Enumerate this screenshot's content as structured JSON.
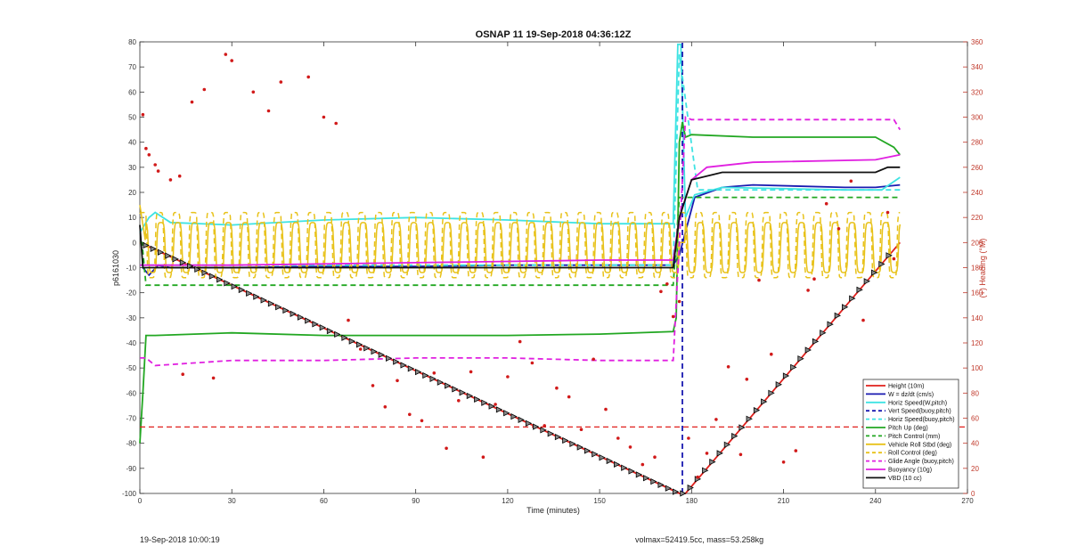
{
  "chart_data": {
    "type": "line",
    "title": "OSNAP 11 19-Sep-2018 04:36:12Z",
    "xlabel": "Time (minutes)",
    "ylabel": "p6161030",
    "y2label": "(+) Heading (°M)",
    "xlim": [
      0,
      270
    ],
    "ylim": [
      -100,
      80
    ],
    "y2lim": [
      0,
      360
    ],
    "xticks": [
      0,
      30,
      60,
      90,
      120,
      150,
      180,
      210,
      240,
      270
    ],
    "yticks": [
      -100,
      -90,
      -80,
      -70,
      -60,
      -50,
      -40,
      -30,
      -20,
      -10,
      0,
      10,
      20,
      30,
      40,
      50,
      60,
      70,
      80
    ],
    "y2ticks": [
      0,
      20,
      40,
      60,
      80,
      100,
      120,
      140,
      160,
      180,
      200,
      220,
      240,
      260,
      280,
      300,
      320,
      340,
      360
    ],
    "grid": false,
    "legend_position": "bottom-right",
    "series": [
      {
        "name": "Height (10m)",
        "color": "#e0201c",
        "style": "solid",
        "x": [
          0,
          176,
          178,
          248
        ],
        "y": [
          0,
          -100,
          -100,
          0
        ]
      },
      {
        "name": "W = dz/dt (cm/s)",
        "color": "#1a1ab0",
        "style": "solid",
        "x": [
          1,
          3,
          6,
          10,
          30,
          60,
          90,
          120,
          150,
          174,
          176,
          181,
          190,
          200,
          230,
          240,
          248
        ],
        "y": [
          -10,
          -13,
          -9,
          -10,
          -10,
          -9.5,
          -9.5,
          -9,
          -9,
          -9,
          -5,
          18,
          22,
          23,
          22,
          22,
          23
        ]
      },
      {
        "name": "Horiz Speed(W,pitch)",
        "color": "#3ee3e3",
        "style": "solid",
        "x": [
          0,
          3,
          5,
          10,
          30,
          60,
          90,
          120,
          150,
          174,
          175.5,
          176.5,
          178,
          181,
          190,
          230,
          242,
          248
        ],
        "y": [
          4,
          10,
          12,
          8,
          7,
          9,
          10,
          9,
          7.5,
          7.5,
          79,
          79,
          10,
          19,
          22,
          21,
          21,
          26
        ]
      },
      {
        "name": "Vert Speed(buoy,pitch)",
        "color": "#1a1ab0",
        "style": "dashed",
        "x": [
          177,
          177
        ],
        "y": [
          -100,
          80
        ]
      },
      {
        "name": "Horiz Speed(buoy,pitch)",
        "color": "#3ee3e3",
        "style": "dashed",
        "x": [
          0,
          174,
          176,
          182,
          248
        ],
        "y": [
          -9,
          -9,
          75,
          21,
          21
        ]
      },
      {
        "name": "Pitch Up (deg)",
        "color": "#22a722",
        "style": "solid",
        "x": [
          0,
          1,
          2,
          5,
          30,
          60,
          90,
          120,
          150,
          174,
          175,
          176,
          177,
          178,
          180,
          200,
          240,
          246,
          248
        ],
        "y": [
          -80,
          -60,
          -37,
          -37,
          -36,
          -37,
          -37,
          -37,
          -36.5,
          -35.5,
          -30,
          40,
          48,
          42,
          43,
          42,
          42,
          38,
          35
        ]
      },
      {
        "name": "Pitch Control (mm)",
        "color": "#22a722",
        "style": "dashed",
        "x": [
          0,
          0.7,
          2,
          174,
          176,
          180,
          248
        ],
        "y": [
          0,
          0,
          -17,
          -17,
          18,
          18,
          18
        ]
      },
      {
        "name": "Vehicle Roll Stbd (deg)",
        "color": "#e8c21a",
        "style": "solid",
        "x": [
          0,
          174,
          178,
          248
        ],
        "y": [
          0,
          0,
          -5,
          -5
        ]
      },
      {
        "name": "Roll Control (deg)",
        "color": "#e8c21a",
        "style": "dashed",
        "x": [
          0,
          174,
          178,
          248
        ],
        "y": [
          0,
          0,
          -5,
          -5
        ]
      },
      {
        "name": "Glide Angle (buoy,pitch)",
        "color": "#e020e0",
        "style": "dashed",
        "x": [
          0,
          2,
          5,
          30,
          60,
          90,
          120,
          150,
          174,
          176,
          178,
          180,
          190,
          246,
          248
        ],
        "y": [
          -46,
          -46,
          -49,
          -47,
          -47,
          -46,
          -46,
          -47,
          -47,
          0,
          50,
          49,
          49,
          49,
          45
        ]
      },
      {
        "name": "Buoyancy (10g)",
        "color": "#e020e0",
        "style": "solid",
        "x": [
          0,
          2,
          30,
          60,
          90,
          120,
          150,
          174,
          176,
          180,
          185,
          200,
          240,
          248
        ],
        "y": [
          -9,
          -9,
          -9,
          -8.5,
          -8,
          -7.5,
          -7,
          -7,
          10,
          25,
          30,
          32,
          33,
          35
        ]
      },
      {
        "name": "VBD (10 cc)",
        "color": "#111111",
        "style": "solid",
        "x": [
          0,
          1,
          2,
          174,
          176,
          180,
          190,
          240,
          244,
          248
        ],
        "y": [
          7,
          -10,
          -10,
          -10,
          10,
          25,
          28,
          28,
          30,
          30
        ]
      }
    ],
    "heading_points": {
      "name": "Heading",
      "color": "#d11a1a",
      "axis": "right",
      "points": [
        [
          1,
          302
        ],
        [
          2,
          275
        ],
        [
          3,
          270
        ],
        [
          5,
          262
        ],
        [
          6,
          257
        ],
        [
          10,
          250
        ],
        [
          13,
          253
        ],
        [
          14,
          95
        ],
        [
          17,
          312
        ],
        [
          21,
          322
        ],
        [
          24,
          92
        ],
        [
          28,
          350
        ],
        [
          30,
          345
        ],
        [
          37,
          320
        ],
        [
          42,
          305
        ],
        [
          46,
          328
        ],
        [
          55,
          332
        ],
        [
          60,
          300
        ],
        [
          64,
          295
        ],
        [
          68,
          138
        ],
        [
          72,
          115
        ],
        [
          76,
          86
        ],
        [
          80,
          69
        ],
        [
          84,
          90
        ],
        [
          88,
          63
        ],
        [
          92,
          58
        ],
        [
          96,
          96
        ],
        [
          100,
          36
        ],
        [
          104,
          74
        ],
        [
          108,
          97
        ],
        [
          112,
          29
        ],
        [
          116,
          71
        ],
        [
          120,
          93
        ],
        [
          124,
          121
        ],
        [
          128,
          104
        ],
        [
          132,
          54
        ],
        [
          136,
          84
        ],
        [
          140,
          77
        ],
        [
          144,
          51
        ],
        [
          148,
          107
        ],
        [
          152,
          67
        ],
        [
          156,
          44
        ],
        [
          160,
          37
        ],
        [
          164,
          23
        ],
        [
          168,
          29
        ],
        [
          170,
          161
        ],
        [
          172,
          167
        ],
        [
          174,
          141
        ],
        [
          176,
          153
        ],
        [
          179,
          44
        ],
        [
          182,
          13
        ],
        [
          185,
          32
        ],
        [
          188,
          59
        ],
        [
          192,
          101
        ],
        [
          196,
          31
        ],
        [
          198,
          91
        ],
        [
          202,
          170
        ],
        [
          206,
          111
        ],
        [
          210,
          25
        ],
        [
          214,
          34
        ],
        [
          218,
          162
        ],
        [
          220,
          171
        ],
        [
          224,
          231
        ],
        [
          228,
          211
        ],
        [
          232,
          249
        ],
        [
          236,
          138
        ],
        [
          240,
          54
        ],
        [
          242,
          84
        ],
        [
          244,
          224
        ],
        [
          246,
          187
        ],
        [
          248,
          85
        ]
      ]
    },
    "annotations": [
      "19-Sep-2018 10:00:19",
      "volmax=52419.5cc, mass=53.258kg"
    ]
  },
  "footer": {
    "left": "19-Sep-2018 10:00:19",
    "right": "volmax=52419.5cc, mass=53.258kg"
  }
}
